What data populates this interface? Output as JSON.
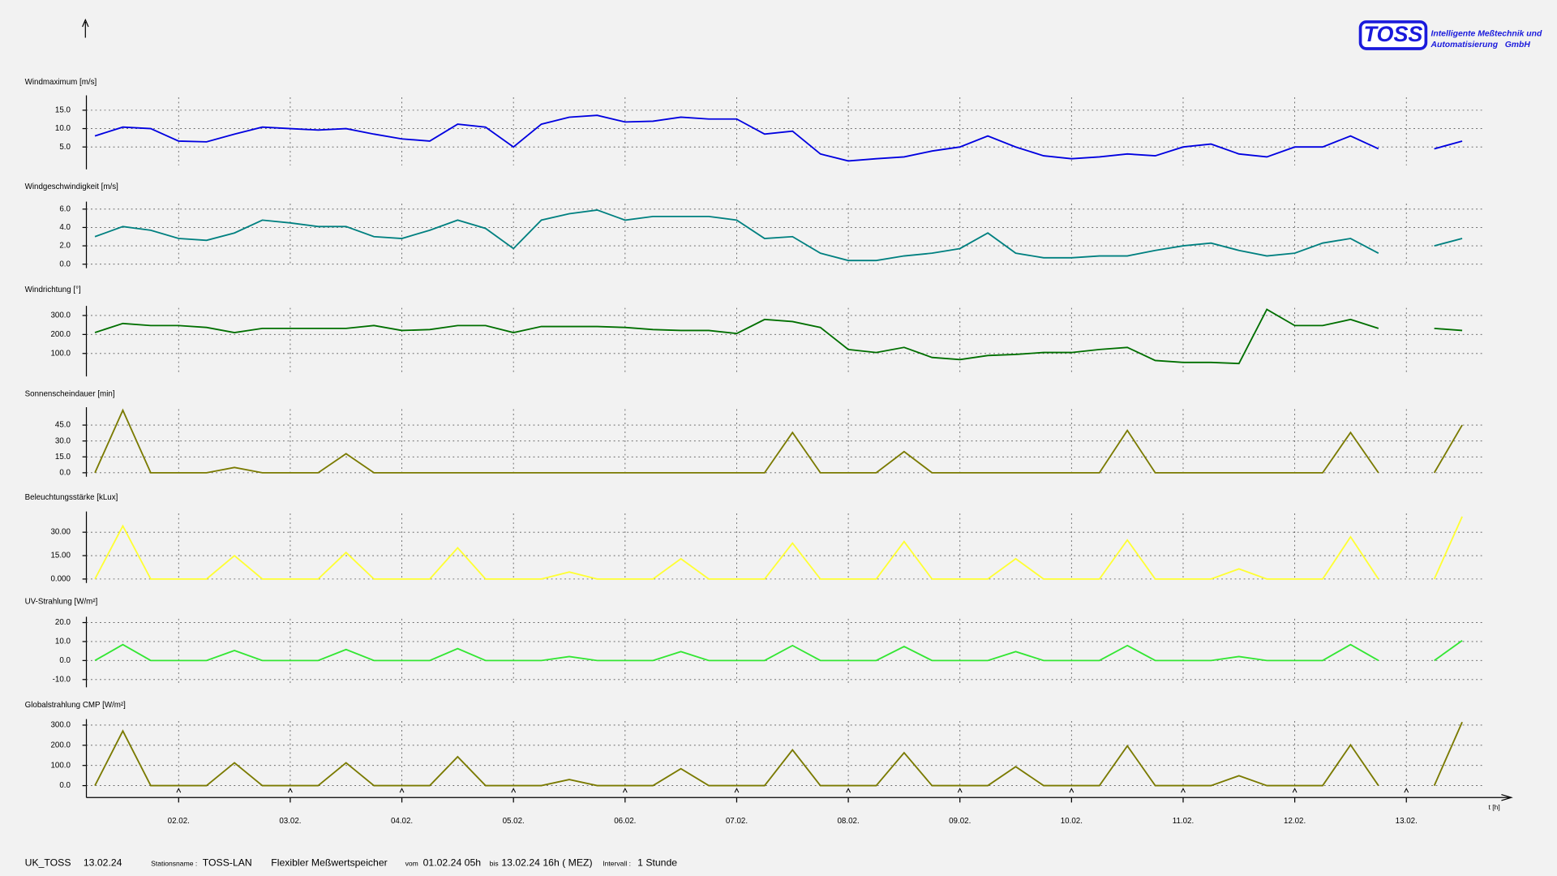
{
  "header": {
    "logo": "TOSS",
    "company_line1": "Intelligente Meßtechnik und",
    "company_line2": "Automatisierung   GmbH"
  },
  "chart_data": [
    {
      "type": "line",
      "title": "Windmaximum [m/s]",
      "color": "#0000e0",
      "grid": true,
      "ylim": [
        0,
        18.5
      ],
      "yticks": [
        {
          "value": 5,
          "label": "5.0"
        },
        {
          "value": 10,
          "label": "10.0"
        },
        {
          "value": 15,
          "label": "15.0"
        }
      ],
      "values": [
        8,
        10.4,
        10,
        6.6,
        6.4,
        8.5,
        10.4,
        10,
        9.6,
        10,
        8.5,
        7.2,
        6.6,
        11.2,
        10.4,
        5,
        11.2,
        13.1,
        13.6,
        11.8,
        12,
        13.1,
        12.6,
        12.6,
        8.5,
        9.3,
        3.1,
        1.2,
        1.8,
        2.3,
        3.9,
        5,
        8,
        5,
        2.6,
        1.8,
        2.3,
        3.1,
        2.6,
        5,
        5.8,
        3.1,
        2.3,
        5,
        5,
        8,
        4.5,
        null,
        4.5,
        6.6
      ]
    },
    {
      "type": "line",
      "title": "Windgeschwindigkeit [m/s]",
      "color": "#008080",
      "grid": true,
      "ylim": [
        0,
        6.6
      ],
      "yticks": [
        {
          "value": 0,
          "label": "0.0"
        },
        {
          "value": 2,
          "label": "2.0"
        },
        {
          "value": 4,
          "label": "4.0"
        },
        {
          "value": 6,
          "label": "6.0"
        }
      ],
      "values": [
        3,
        4.1,
        3.7,
        2.8,
        2.6,
        3.4,
        4.8,
        4.5,
        4.1,
        4.1,
        3,
        2.8,
        3.7,
        4.8,
        3.9,
        1.7,
        4.8,
        5.5,
        5.9,
        4.8,
        5.2,
        5.2,
        5.2,
        4.8,
        2.8,
        3,
        1.2,
        0.4,
        0.4,
        0.9,
        1.2,
        1.7,
        3.4,
        1.2,
        0.7,
        0.7,
        0.9,
        0.9,
        1.5,
        2,
        2.3,
        1.5,
        0.9,
        1.2,
        2.3,
        2.8,
        1.2,
        null,
        2,
        2.8
      ]
    },
    {
      "type": "line",
      "title": "Windrichtung [°]",
      "color": "#006f00",
      "grid": true,
      "ylim": [
        0,
        340
      ],
      "yticks": [
        {
          "value": 100,
          "label": "100.0"
        },
        {
          "value": 200,
          "label": "200.0"
        },
        {
          "value": 300,
          "label": "300.0"
        }
      ],
      "values": [
        210,
        258,
        247,
        247,
        237,
        210,
        232,
        232,
        232,
        232,
        247,
        221,
        226,
        247,
        247,
        210,
        242,
        242,
        242,
        237,
        226,
        221,
        221,
        205,
        279,
        268,
        237,
        121,
        105,
        132,
        79,
        68,
        89,
        95,
        105,
        105,
        121,
        132,
        63,
        53,
        53,
        47,
        332,
        247,
        247,
        279,
        232,
        null,
        232,
        221
      ]
    },
    {
      "type": "line",
      "title": "Sonnenscheindauer [min]",
      "color": "#7a7a00",
      "grid": true,
      "ylim": [
        0,
        60
      ],
      "yticks": [
        {
          "value": 0,
          "label": "0.0"
        },
        {
          "value": 15,
          "label": "15.0"
        },
        {
          "value": 30,
          "label": "30.0"
        },
        {
          "value": 45,
          "label": "45.0"
        }
      ],
      "values": [
        0,
        59,
        0,
        0,
        0,
        5,
        0,
        0,
        0,
        18,
        0,
        0,
        0,
        0,
        0,
        0,
        0,
        0,
        0,
        0,
        0,
        0,
        0,
        0,
        0,
        38,
        0,
        0,
        0,
        20,
        0,
        0,
        0,
        0,
        0,
        0,
        0,
        40,
        0,
        0,
        0,
        0,
        0,
        0,
        0,
        38,
        0,
        null,
        0,
        45
      ]
    },
    {
      "type": "line",
      "title": "Beleuchtungsstärke [kLux]",
      "color": "#ffff33",
      "grid": true,
      "ylim": [
        0,
        42
      ],
      "yticks": [
        {
          "value": 0,
          "label": "0.000"
        },
        {
          "value": 15,
          "label": "15.00"
        },
        {
          "value": 30,
          "label": "30.00"
        }
      ],
      "values": [
        0,
        34,
        0,
        0,
        0,
        15,
        0,
        0,
        0,
        17,
        0,
        0,
        0,
        20,
        0,
        0,
        0,
        4.5,
        0,
        0,
        0,
        13,
        0,
        0,
        0,
        23,
        0,
        0,
        0,
        24,
        0,
        0,
        0,
        13,
        0,
        0,
        0,
        25,
        0,
        0,
        0,
        6.5,
        0,
        0,
        0,
        27,
        0,
        null,
        0,
        40
      ]
    },
    {
      "type": "line",
      "title": "UV-Strahlung [W/m²]",
      "color": "#33e633",
      "grid": true,
      "ylim": [
        -12,
        22
      ],
      "yticks": [
        {
          "value": -10,
          "label": "-10.0"
        },
        {
          "value": 0,
          "label": "0.0"
        },
        {
          "value": 10,
          "label": "10.0"
        },
        {
          "value": 20,
          "label": "20.0"
        }
      ],
      "values": [
        0,
        8.4,
        0,
        0,
        0,
        5.3,
        0,
        0,
        0,
        5.8,
        0,
        0,
        0,
        6.3,
        0,
        0,
        0,
        2.1,
        0,
        0,
        0,
        4.7,
        0,
        0,
        0,
        7.9,
        0,
        0,
        0,
        7.4,
        0,
        0,
        0,
        4.7,
        0,
        0,
        0,
        7.9,
        0,
        0,
        0,
        2.1,
        0,
        0,
        0,
        8.4,
        0,
        null,
        0,
        10.5
      ]
    },
    {
      "type": "line",
      "title": "Globalstrahlung CMP [W/m²]",
      "color": "#7a7a00",
      "grid": true,
      "ylim": [
        0,
        320
      ],
      "yticks": [
        {
          "value": 0,
          "label": "0.0"
        },
        {
          "value": 100,
          "label": "100.0"
        },
        {
          "value": 200,
          "label": "200.0"
        },
        {
          "value": 300,
          "label": "300.0"
        }
      ],
      "values": [
        0,
        271,
        0,
        0,
        0,
        113,
        0,
        0,
        0,
        113,
        0,
        0,
        0,
        143,
        0,
        0,
        0,
        30,
        0,
        0,
        0,
        84,
        0,
        0,
        0,
        177,
        0,
        0,
        0,
        163,
        0,
        0,
        0,
        94,
        0,
        0,
        0,
        197,
        0,
        0,
        0,
        49,
        0,
        0,
        0,
        202,
        0,
        null,
        0,
        315
      ],
      "xlabel": "t [h]",
      "categories": [
        null,
        null,
        null,
        "02.02.",
        null,
        null,
        null,
        "03.02.",
        null,
        null,
        null,
        "04.02.",
        null,
        null,
        null,
        "05.02.",
        null,
        null,
        null,
        "06.02.",
        null,
        null,
        null,
        "07.02.",
        null,
        null,
        null,
        "08.02.",
        null,
        null,
        null,
        "09.02.",
        null,
        null,
        null,
        "10.02.",
        null,
        null,
        null,
        "11.02.",
        null,
        null,
        null,
        "12.02.",
        null,
        null,
        null,
        "13.02.",
        null,
        null
      ]
    }
  ],
  "footer": {
    "station_id": "UK_TOSS",
    "date": "13.02.24",
    "station_label": "Stationsname :",
    "station_name": "TOSS-LAN",
    "mode": "Flexibler Meßwertspeicher",
    "from_label": "vom",
    "from": "01.02.24 05h",
    "to_label": "bis",
    "to": "13.02.24 16h ( MEZ)",
    "interval_label": "Intervall :",
    "interval": "1 Stunde"
  }
}
